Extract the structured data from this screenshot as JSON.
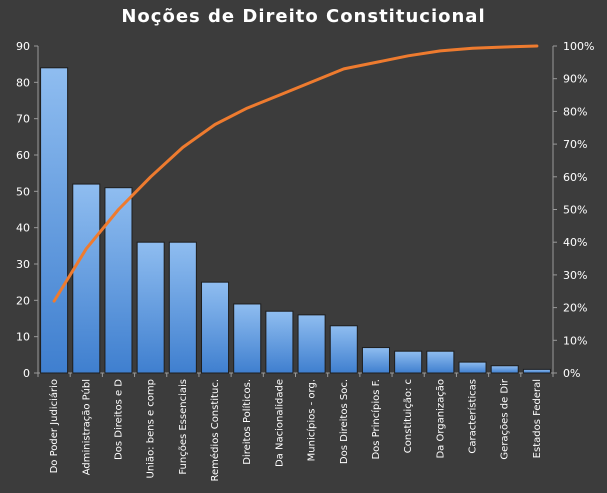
{
  "chart_data": {
    "type": "bar",
    "title": "Noções de Direito  Constitucional",
    "categories": [
      "Do Poder Judiciário",
      "Administração Públ",
      "Dos Direitos e D",
      "União: bens e comp",
      "Funções Essenciais",
      "Remédios Constituc.",
      "Direitos Políticos.",
      "Da Nacionalidade",
      "Municípios - org.",
      "Dos Direitos Soc.",
      "Dos Princípios F.",
      "Constituição: c",
      "Da Organização",
      "Características",
      "Gerações de Dir",
      "Estados Federal"
    ],
    "series": [
      {
        "type": "bar",
        "values": [
          84,
          52,
          51,
          36,
          36,
          25,
          19,
          17,
          16,
          13,
          7,
          6,
          6,
          3,
          2,
          1
        ]
      },
      {
        "type": "line",
        "axis": "right",
        "values": [
          22,
          38,
          50,
          60,
          69,
          76,
          81,
          85,
          89,
          93,
          95,
          97,
          98.5,
          99.3,
          99.7,
          100
        ]
      }
    ],
    "y_left": {
      "min": 0,
      "max": 90,
      "step": 10,
      "ticks": [
        "0",
        "10",
        "20",
        "30",
        "40",
        "50",
        "60",
        "70",
        "80",
        "90"
      ]
    },
    "y_right": {
      "min": 0,
      "max": 100,
      "step": 10,
      "ticks": [
        "0%",
        "10%",
        "20%",
        "30%",
        "40%",
        "50%",
        "60%",
        "70%",
        "80%",
        "90%",
        "100%"
      ]
    },
    "grid": false,
    "legend": "none",
    "colors": {
      "background": "#3c3c3c",
      "bar_top": "#8fbdf0",
      "bar_bottom": "#3f7fcf",
      "bar_stroke": "#1e1e1e",
      "line": "#ee7b2f",
      "axis": "#9a9a9a",
      "text": "#ffffff"
    }
  }
}
